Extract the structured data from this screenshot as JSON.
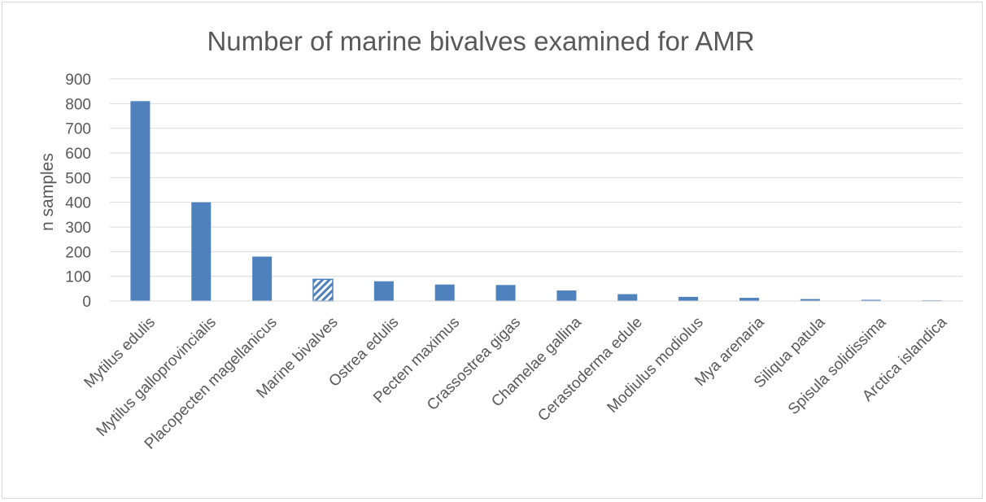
{
  "colors": {
    "bar": "#4f81bd",
    "hatch_bar_outline": "#4f81bd",
    "text": "#595959",
    "grid": "#d9d9d9"
  },
  "chart_data": {
    "type": "bar",
    "title": "Number of marine bivalves examined for AMR",
    "xlabel": "",
    "ylabel": "n samples",
    "ylim": [
      0,
      900
    ],
    "yticks": [
      0,
      100,
      200,
      300,
      400,
      500,
      600,
      700,
      800,
      900
    ],
    "grid": true,
    "legend": "none",
    "categories": [
      "Mytilus edulis",
      "Mytilus galloprovincialis",
      "Placopecten magellanicus",
      "Marine bivalves",
      "Ostrea edulis",
      "Pecten maximus",
      "Crassostrea gigas",
      "Chamelae gallina",
      "Cerastoderma edule",
      "Modiulus modiolus",
      "Mya arenaria",
      "Siliqua patula",
      "Spisula solidissima",
      "Arctica islandica"
    ],
    "values": [
      810,
      400,
      180,
      88,
      80,
      67,
      65,
      43,
      28,
      17,
      13,
      8,
      5,
      3
    ],
    "patterns": [
      "solid",
      "solid",
      "solid",
      "hatched",
      "solid",
      "solid",
      "solid",
      "solid",
      "solid",
      "solid",
      "solid",
      "solid",
      "solid",
      "solid"
    ]
  }
}
